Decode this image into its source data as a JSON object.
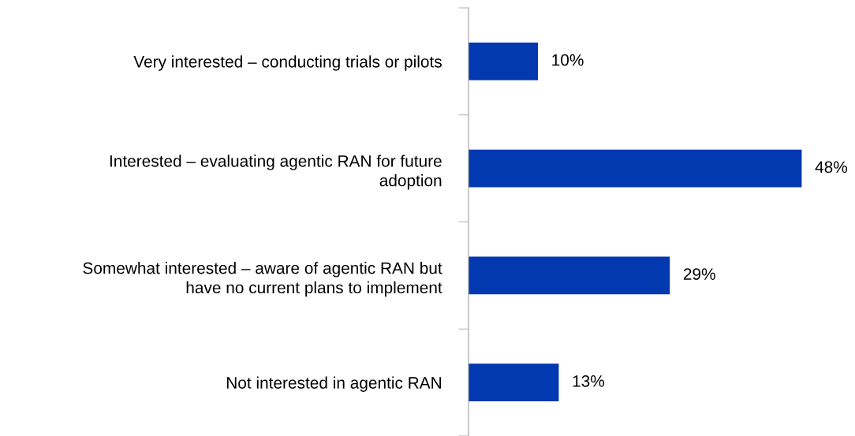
{
  "chart_data": {
    "type": "bar",
    "orientation": "horizontal",
    "categories": [
      "Very interested – conducting trials or pilots",
      "Interested – evaluating agentic RAN for future\nadoption",
      "Somewhat interested – aware of agentic RAN but\nhave no current plans to implement",
      "Not interested in agentic RAN"
    ],
    "values": [
      10,
      48,
      29,
      13
    ],
    "value_labels": [
      "10%",
      "48%",
      "29%",
      "13%"
    ],
    "color": "#0238b0",
    "grid": false,
    "legend": false
  }
}
